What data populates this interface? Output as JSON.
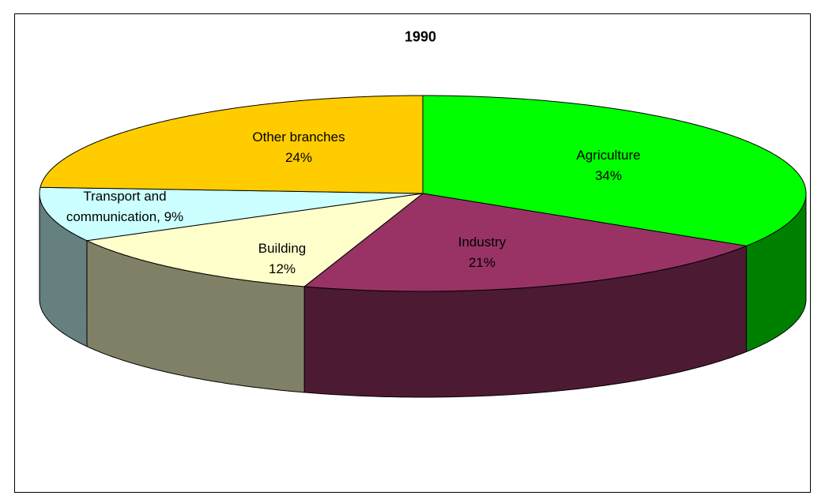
{
  "chart_data": {
    "type": "pie3d",
    "title": "1990",
    "categories": [
      "Agriculture",
      "Industry",
      "Building",
      "Transport and communication",
      "Other branches"
    ],
    "values": [
      34,
      21,
      12,
      9,
      24
    ],
    "value_labels": [
      "Agriculture\n34%",
      "Industry\n21%",
      "Building\n12%",
      "Transport and\ncommunication, 9%",
      "Other branches\n24%"
    ],
    "colors": [
      "#00ff00",
      "#993366",
      "#ffffcc",
      "#ccffff",
      "#ffcc00"
    ]
  }
}
